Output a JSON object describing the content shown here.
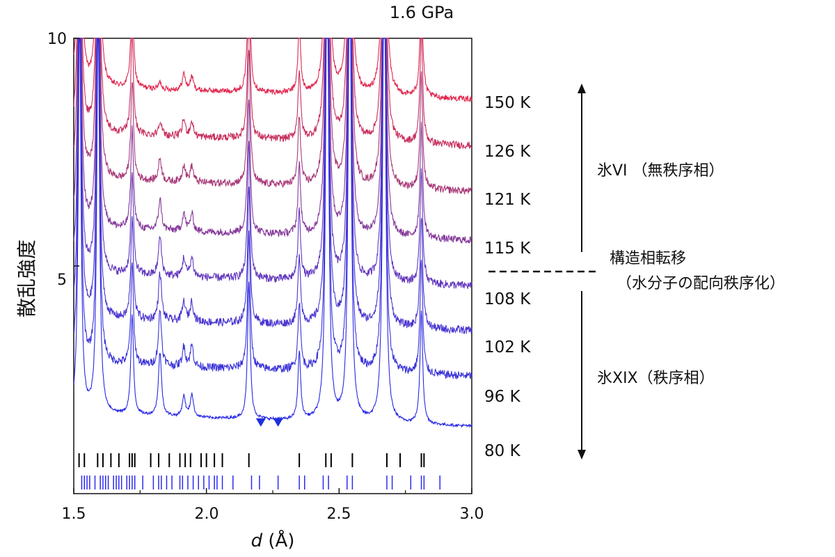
{
  "chart_data": {
    "type": "line",
    "title": "1.6 GPa",
    "xlabel_italic": "d",
    "xlabel_unit": " (Å)",
    "ylabel": "散乱強度",
    "xlim": [
      1.5,
      3.0
    ],
    "ylim": [
      0,
      10
    ],
    "x_ticks": [
      "1.5",
      "2.0",
      "2.5",
      "3.0"
    ],
    "y_ticks": [
      "5",
      "10"
    ],
    "series": [
      {
        "name": "150 K",
        "baseline": 8.8,
        "color": "#e0284f",
        "noise": 0.06
      },
      {
        "name": "126 K",
        "baseline": 7.78,
        "color": "#c7305e",
        "noise": 0.08
      },
      {
        "name": "121 K",
        "baseline": 6.78,
        "color": "#a83a78",
        "noise": 0.08
      },
      {
        "name": "115 K",
        "baseline": 5.7,
        "color": "#85399a",
        "noise": 0.08
      },
      {
        "name": "108 K",
        "baseline": 4.7,
        "color": "#6238bd",
        "noise": 0.09
      },
      {
        "name": "102 K",
        "baseline": 3.72,
        "color": "#4a36cf",
        "noise": 0.09
      },
      {
        "name": "96 K",
        "baseline": 2.72,
        "color": "#3a33d8",
        "noise": 0.09
      },
      {
        "name": "80 K",
        "baseline": 1.62,
        "color": "#2828e6",
        "noise": 0.03
      }
    ],
    "peaks_common": [
      {
        "d": 1.522,
        "h": 9.0
      },
      {
        "d": 1.592,
        "h": 9.0
      },
      {
        "d": 1.72,
        "h": 2.2
      },
      {
        "d": 2.16,
        "h": 3.0
      },
      {
        "d": 2.35,
        "h": 1.5
      },
      {
        "d": 2.455,
        "h": 12.0
      },
      {
        "d": 2.54,
        "h": 12.0
      },
      {
        "d": 2.67,
        "h": 12.0
      },
      {
        "d": 2.81,
        "h": 2.5
      }
    ],
    "peaks_order_dependent": [
      {
        "d": 1.825,
        "h_high": 0.15,
        "h_low": 1.4
      },
      {
        "d": 1.915,
        "h_high": 0.35,
        "h_low": 0.45
      },
      {
        "d": 1.945,
        "h_high": 0.3,
        "h_low": 0.5
      }
    ],
    "tick_marks_black": [
      1.52,
      1.54,
      1.59,
      1.61,
      1.64,
      1.67,
      1.71,
      1.72,
      1.73,
      1.79,
      1.82,
      1.86,
      1.9,
      1.92,
      1.94,
      1.98,
      2.0,
      2.03,
      2.06,
      2.16,
      2.35,
      2.45,
      2.47,
      2.55,
      2.68,
      2.73,
      2.81,
      2.82
    ],
    "tick_marks_blue": [
      1.53,
      1.54,
      1.55,
      1.56,
      1.58,
      1.6,
      1.61,
      1.62,
      1.63,
      1.65,
      1.66,
      1.67,
      1.68,
      1.7,
      1.71,
      1.72,
      1.73,
      1.76,
      1.8,
      1.82,
      1.83,
      1.85,
      1.87,
      1.9,
      1.91,
      1.93,
      1.95,
      1.97,
      1.99,
      2.01,
      2.03,
      2.04,
      2.06,
      2.1,
      2.17,
      2.2,
      2.27,
      2.35,
      2.37,
      2.44,
      2.46,
      2.53,
      2.55,
      2.68,
      2.7,
      2.77,
      2.81,
      2.82,
      2.88
    ],
    "markers": [
      {
        "d": 2.205,
        "y": 1.5
      },
      {
        "d": 2.27,
        "y": 1.5
      }
    ],
    "phase_labels": {
      "upper": "氷VI （無秩序相）",
      "transition_line1": "構造相転移",
      "transition_line2": "（水分子の配向秩序化）",
      "lower": "氷XIX（秩序相）"
    },
    "colors": {
      "black_ticks": "#000000",
      "blue_ticks": "#2a2af0",
      "marker": "#1f2fe0"
    }
  }
}
